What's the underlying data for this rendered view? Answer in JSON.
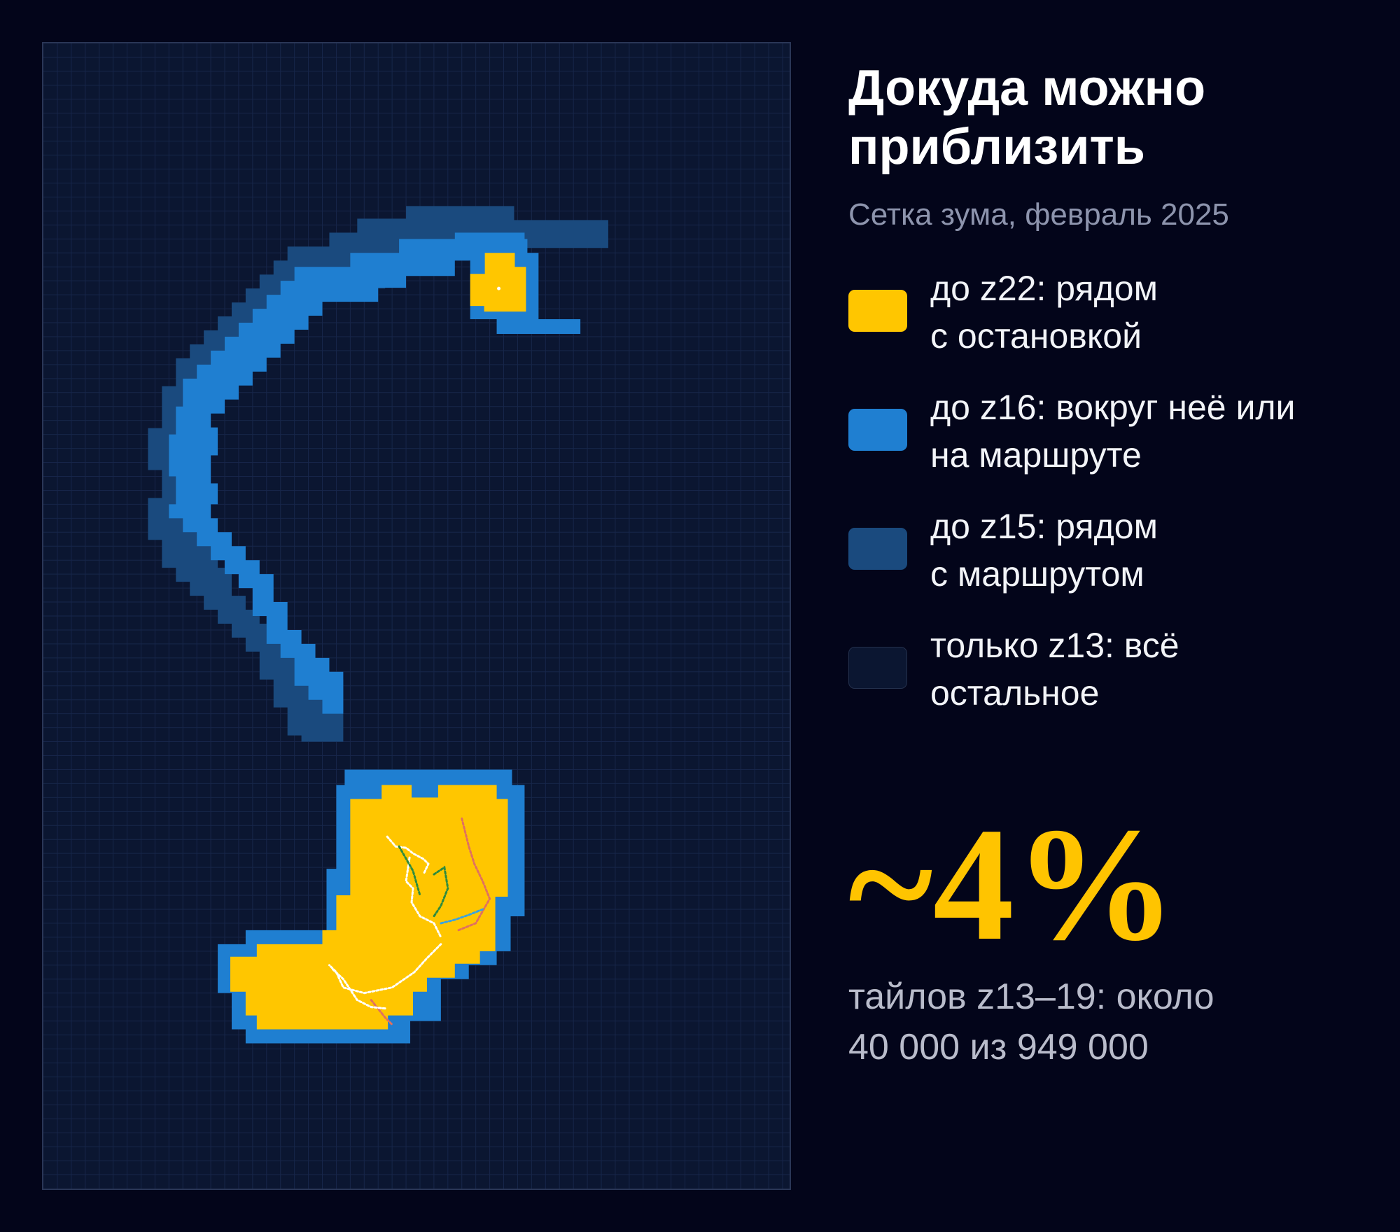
{
  "title": "Докуда можно\nприблизить",
  "subtitle": "Сетка зума, февраль 2025",
  "legend": [
    {
      "label": "до z22: рядом\nс остановкой",
      "color": "#ffc600"
    },
    {
      "label": "до z16: вокруг неё или\nна маршруте",
      "color": "#1f7fd1"
    },
    {
      "label": "до z15: рядом\nс маршрутом",
      "color": "#1a4a7e"
    },
    {
      "label": "только z13: всё\nостальное",
      "color": "#0b1631"
    }
  ],
  "stat": {
    "value": "~4%",
    "caption": "тайлов z13–19: около\n40 000 из 949 000"
  },
  "map": {
    "background_color": "#0b1631",
    "grid_color": "#17264a",
    "route_colors": [
      "#ffffff",
      "#2e8b3e",
      "#e07060",
      "#3aa3e0"
    ]
  }
}
